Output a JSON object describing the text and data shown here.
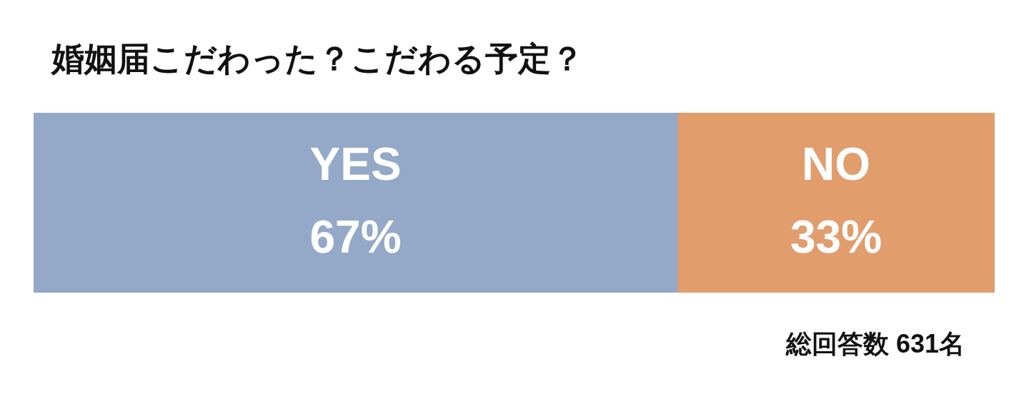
{
  "chart_data": {
    "type": "bar",
    "title": "婚姻届こだわった？こだわる予定？",
    "orientation": "horizontal",
    "stacked": true,
    "categories": [
      null
    ],
    "xlim": [
      0,
      100
    ],
    "series": [
      {
        "name": "YES",
        "color": "#94a9c8",
        "values": [
          67
        ],
        "value_labels": [
          "67%"
        ]
      },
      {
        "name": "NO",
        "color": "#e29d6d",
        "values": [
          33
        ],
        "value_labels": [
          "33%"
        ]
      }
    ],
    "annotations": [
      "総回答数 631名"
    ]
  }
}
